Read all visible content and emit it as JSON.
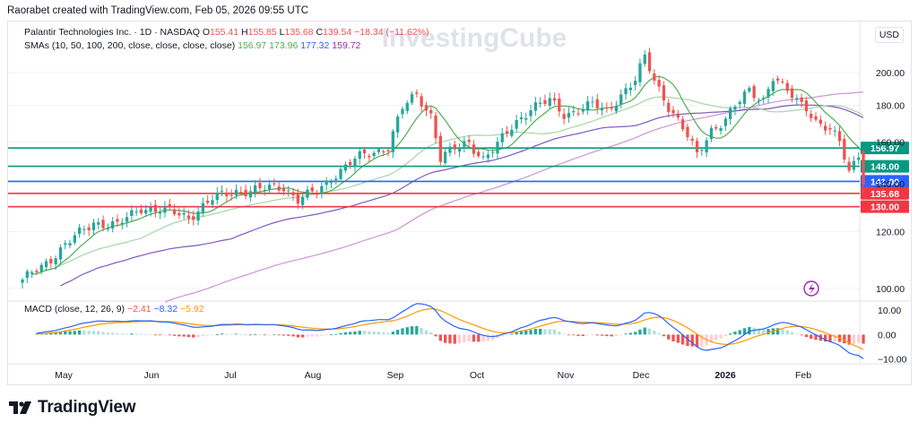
{
  "header": {
    "creator": "Raorabet created with TradingView.com, Feb 05, 2026 09:55 UTC"
  },
  "watermark": "InvestingCube",
  "brand": "TradingView",
  "legend": {
    "symbol": "Palantir Technologies Inc. · 1D · NASDAQ",
    "ohlc": [
      {
        "key": "O",
        "value": "155.41"
      },
      {
        "key": "H",
        "value": "155.85"
      },
      {
        "key": "L",
        "value": "135.68"
      },
      {
        "key": "C",
        "value": "139.54"
      }
    ],
    "change": "−18.34 (−11.62%)",
    "sma_label": "SMAs (10, 50, 100, 200, close, close, close, close)",
    "sma_values": [
      {
        "value": "156.97",
        "color": "#4caf50"
      },
      {
        "value": "173.96",
        "color": "#4caf50"
      },
      {
        "value": "177.32",
        "color": "#2962ff"
      },
      {
        "value": "159.72",
        "color": "#9c27b0"
      }
    ],
    "macd_label": "MACD (close, 12, 26, 9)",
    "macd_values": [
      {
        "value": "−2.41",
        "color": "#ef5350"
      },
      {
        "value": "−8.32",
        "color": "#2962ff"
      },
      {
        "value": "−5.92",
        "color": "#ff9800"
      }
    ]
  },
  "currency": "USD",
  "colors": {
    "up": "#26a69a",
    "down": "#ef5350",
    "green_level": "#089981",
    "blue_level": "#2962ff",
    "red_level": "#f23645",
    "sma10": "#4caf50",
    "sma50": "#a5d6a7",
    "sma100": "#7e57c2",
    "sma200": "#ce93d8",
    "macd_line": "#2962ff",
    "signal_line": "#ff9800"
  },
  "chart_data": {
    "type": "candlestick",
    "x_ticks": [
      "May",
      "Jun",
      "Jul",
      "Aug",
      "Sep",
      "Oct",
      "Nov",
      "Dec",
      "2026",
      "Feb"
    ],
    "y_ticks": [
      "200.00",
      "180.00",
      "160.00",
      "140.00",
      "120.00",
      "100.00"
    ],
    "y_range": [
      96,
      210
    ],
    "scale": "log",
    "horizontal_levels": [
      {
        "label": "156.97",
        "value": 156.97,
        "color": "#089981"
      },
      {
        "label": "148.00",
        "value": 148.0,
        "color": "#089981"
      },
      {
        "label": "141.00",
        "value": 141.0,
        "color": "#2962ff"
      },
      {
        "label": "135.68",
        "value": 135.68,
        "color": "#f23645"
      },
      {
        "label": "130.00",
        "value": 130.0,
        "color": "#f23645"
      }
    ],
    "price_anchors": [
      [
        0,
        102
      ],
      [
        5,
        109
      ],
      [
        10,
        116
      ],
      [
        15,
        124
      ],
      [
        20,
        122
      ],
      [
        25,
        130
      ],
      [
        30,
        128
      ],
      [
        35,
        126
      ],
      [
        40,
        133
      ],
      [
        45,
        137
      ],
      [
        50,
        137
      ],
      [
        55,
        139
      ],
      [
        58,
        133
      ],
      [
        62,
        136
      ],
      [
        66,
        145
      ],
      [
        70,
        151
      ],
      [
        74,
        155
      ],
      [
        77,
        158
      ],
      [
        80,
        178
      ],
      [
        83,
        186
      ],
      [
        86,
        175
      ],
      [
        88,
        152
      ],
      [
        91,
        156
      ],
      [
        94,
        160
      ],
      [
        97,
        152
      ],
      [
        100,
        158
      ],
      [
        104,
        171
      ],
      [
        107,
        179
      ],
      [
        111,
        182
      ],
      [
        114,
        175
      ],
      [
        117,
        178
      ],
      [
        120,
        180
      ],
      [
        123,
        176
      ],
      [
        126,
        187
      ],
      [
        129,
        195
      ],
      [
        131,
        209
      ],
      [
        133,
        195
      ],
      [
        136,
        180
      ],
      [
        139,
        167
      ],
      [
        142,
        153
      ],
      [
        145,
        167
      ],
      [
        148,
        172
      ],
      [
        151,
        182
      ],
      [
        153,
        189
      ],
      [
        156,
        184
      ],
      [
        158,
        197
      ],
      [
        160,
        190
      ],
      [
        163,
        183
      ],
      [
        165,
        180
      ],
      [
        167,
        171
      ],
      [
        170,
        165
      ],
      [
        172,
        160
      ],
      [
        174,
        146
      ],
      [
        176,
        155
      ],
      [
        177,
        139.54
      ]
    ],
    "sma_series": [
      {
        "period": 10,
        "values": "smoothed from price"
      },
      {
        "period": 50,
        "end_value": 173.96
      },
      {
        "period": 100,
        "end_value": 177.32
      },
      {
        "period": 200,
        "end_value": 159.72
      }
    ],
    "macd_y_ticks": [
      "10.00",
      "0.00",
      "−10.00"
    ],
    "macd_range": [
      -12,
      13
    ]
  }
}
